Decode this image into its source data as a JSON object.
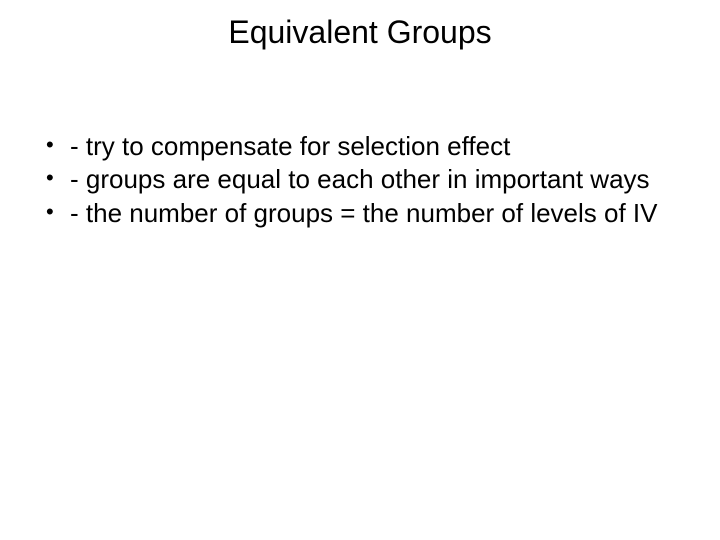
{
  "slide": {
    "title": "Equivalent Groups",
    "bullets": [
      "- try to compensate for selection effect",
      " - groups are equal to each other in important ways",
      "- the number of groups = the number of levels of IV"
    ],
    "background_color": "#ffffff",
    "text_color": "#000000",
    "title_fontsize": 32,
    "body_fontsize": 26,
    "font_family": "Arial"
  }
}
